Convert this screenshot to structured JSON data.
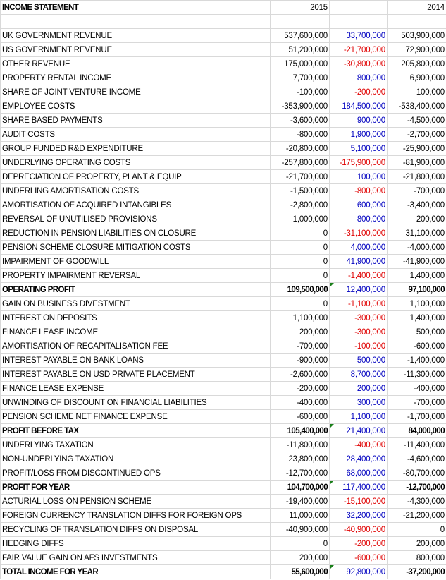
{
  "header": {
    "title": "INCOME STATEMENT",
    "col_2015": "2015",
    "col_diff": "",
    "col_2014": "2014"
  },
  "colors": {
    "positive_diff": "#0000c0",
    "negative_diff": "#e00000"
  },
  "rows": [
    {
      "label": "UK GOVERNMENT REVENUE",
      "y2015": "537,600,000",
      "diff": "33,700,000",
      "y2014": "503,900,000"
    },
    {
      "label": "US GOVERNMENT REVENUE",
      "y2015": "51,200,000",
      "diff": "-21,700,000",
      "y2014": "72,900,000"
    },
    {
      "label": "OTHER REVENUE",
      "y2015": "175,000,000",
      "diff": "-30,800,000",
      "y2014": "205,800,000"
    },
    {
      "label": "PROPERTY RENTAL INCOME",
      "y2015": "7,700,000",
      "diff": "800,000",
      "y2014": "6,900,000"
    },
    {
      "label": "SHARE OF JOINT VENTURE INCOME",
      "y2015": "-100,000",
      "diff": "-200,000",
      "y2014": "100,000"
    },
    {
      "label": "EMPLOYEE COSTS",
      "y2015": "-353,900,000",
      "diff": "184,500,000",
      "y2014": "-538,400,000"
    },
    {
      "label": "SHARE BASED PAYMENTS",
      "y2015": "-3,600,000",
      "diff": "900,000",
      "y2014": "-4,500,000"
    },
    {
      "label": "AUDIT COSTS",
      "y2015": "-800,000",
      "diff": "1,900,000",
      "y2014": "-2,700,000"
    },
    {
      "label": "GROUP FUNDED R&D EXPENDITURE",
      "y2015": "-20,800,000",
      "diff": "5,100,000",
      "y2014": "-25,900,000"
    },
    {
      "label": "UNDERLYING OPERATING COSTS",
      "y2015": "-257,800,000",
      "diff": "-175,900,000",
      "y2014": "-81,900,000"
    },
    {
      "label": "DEPRECIATION OF PROPERTY, PLANT & EQUIP",
      "y2015": "-21,700,000",
      "diff": "100,000",
      "y2014": "-21,800,000"
    },
    {
      "label": "UNDERLING AMORTISATION COSTS",
      "y2015": "-1,500,000",
      "diff": "-800,000",
      "y2014": "-700,000"
    },
    {
      "label": "AMORTISATION OF ACQUIRED INTANGIBLES",
      "y2015": "-2,800,000",
      "diff": "600,000",
      "y2014": "-3,400,000"
    },
    {
      "label": "REVERSAL OF UNUTILISED PROVISIONS",
      "y2015": "1,000,000",
      "diff": "800,000",
      "y2014": "200,000"
    },
    {
      "label": "REDUCTION IN PENSION LIABILITIES ON CLOSURE",
      "y2015": "0",
      "diff": "-31,100,000",
      "y2014": "31,100,000"
    },
    {
      "label": "PENSION SCHEME CLOSURE MITIGATION COSTS",
      "y2015": "0",
      "diff": "4,000,000",
      "y2014": "-4,000,000"
    },
    {
      "label": "IMPAIRMENT OF GOODWILL",
      "y2015": "0",
      "diff": "41,900,000",
      "y2014": "-41,900,000"
    },
    {
      "label": "PROPERTY IMPAIRMENT REVERSAL",
      "y2015": "0",
      "diff": "-1,400,000",
      "y2014": "1,400,000"
    },
    {
      "label": "OPERATING PROFIT",
      "y2015": "109,500,000",
      "diff": "12,400,000",
      "y2014": "97,100,000",
      "bold": true
    },
    {
      "label": "GAIN ON BUSINESS DIVESTMENT",
      "y2015": "0",
      "diff": "-1,100,000",
      "y2014": "1,100,000"
    },
    {
      "label": "INTEREST ON DEPOSITS",
      "y2015": "1,100,000",
      "diff": "-300,000",
      "y2014": "1,400,000"
    },
    {
      "label": "FINANCE LEASE INCOME",
      "y2015": "200,000",
      "diff": "-300,000",
      "y2014": "500,000"
    },
    {
      "label": "AMORTISATION OF RECAPITALISATION FEE",
      "y2015": "-700,000",
      "diff": "-100,000",
      "y2014": "-600,000"
    },
    {
      "label": "INTEREST PAYABLE ON BANK LOANS",
      "y2015": "-900,000",
      "diff": "500,000",
      "y2014": "-1,400,000"
    },
    {
      "label": "INTEREST PAYABLE ON USD PRIVATE PLACEMENT",
      "y2015": "-2,600,000",
      "diff": "8,700,000",
      "y2014": "-11,300,000"
    },
    {
      "label": "FINANCE LEASE EXPENSE",
      "y2015": "-200,000",
      "diff": "200,000",
      "y2014": "-400,000"
    },
    {
      "label": "UNWINDING OF DISCOUNT ON FINANCIAL LIABILITIES",
      "y2015": "-400,000",
      "diff": "300,000",
      "y2014": "-700,000"
    },
    {
      "label": "PENSION SCHEME NET FINANCE EXPENSE",
      "y2015": "-600,000",
      "diff": "1,100,000",
      "y2014": "-1,700,000"
    },
    {
      "label": "PROFIT BEFORE TAX",
      "y2015": "105,400,000",
      "diff": "21,400,000",
      "y2014": "84,000,000",
      "bold": true
    },
    {
      "label": "UNDERLYING TAXATION",
      "y2015": "-11,800,000",
      "diff": "-400,000",
      "y2014": "-11,400,000"
    },
    {
      "label": "NON-UNDERLYING TAXATION",
      "y2015": "23,800,000",
      "diff": "28,400,000",
      "y2014": "-4,600,000"
    },
    {
      "label": "PROFIT/LOSS FROM DISCONTINUED OPS",
      "y2015": "-12,700,000",
      "diff": "68,000,000",
      "y2014": "-80,700,000"
    },
    {
      "label": "PROFIT FOR YEAR",
      "y2015": "104,700,000",
      "diff": "117,400,000",
      "y2014": "-12,700,000",
      "bold": true
    },
    {
      "label": "ACTURIAL LOSS ON PENSION SCHEME",
      "y2015": "-19,400,000",
      "diff": "-15,100,000",
      "y2014": "-4,300,000"
    },
    {
      "label": "FOREIGN CURRENCY TRANSLATION DIFFS FOR FOREIGN OPS",
      "y2015": "11,000,000",
      "diff": "32,200,000",
      "y2014": "-21,200,000"
    },
    {
      "label": "RECYCLING OF TRANSLATION DIFFS ON DISPOSAL",
      "y2015": "-40,900,000",
      "diff": "-40,900,000",
      "y2014": "0"
    },
    {
      "label": "HEDGING DIFFS",
      "y2015": "0",
      "diff": "-200,000",
      "y2014": "200,000"
    },
    {
      "label": "FAIR VALUE GAIN ON AFS INVESTMENTS",
      "y2015": "200,000",
      "diff": "-600,000",
      "y2014": "800,000"
    },
    {
      "label": "TOTAL INCOME FOR YEAR",
      "y2015": "55,600,000",
      "diff": "92,800,000",
      "y2014": "-37,200,000",
      "bold": true
    }
  ]
}
